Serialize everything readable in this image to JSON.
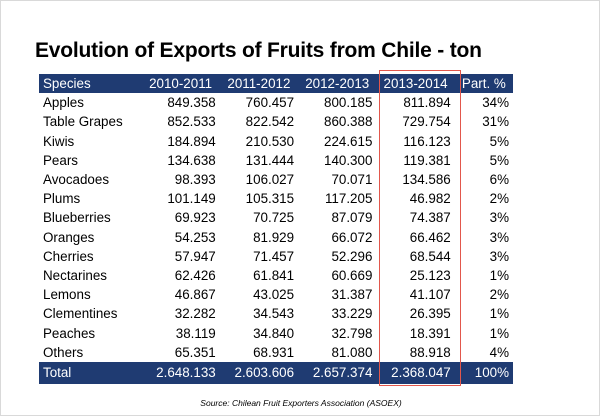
{
  "title": "Evolution of Exports of Fruits from Chile - ton",
  "table": {
    "headers": [
      "Species",
      "2010-2011",
      "2011-2012",
      "2012-2013",
      "2013-2014",
      "Part. %"
    ],
    "rows": [
      [
        "Apples",
        "849.358",
        "760.457",
        "800.185",
        "811.894",
        "34%"
      ],
      [
        "Table Grapes",
        "852.533",
        "822.542",
        "860.388",
        "729.754",
        "31%"
      ],
      [
        "Kiwis",
        "184.894",
        "210.530",
        "224.615",
        "116.123",
        "5%"
      ],
      [
        "Pears",
        "134.638",
        "131.444",
        "140.300",
        "119.381",
        "5%"
      ],
      [
        "Avocadoes",
        "98.393",
        "106.027",
        "70.071",
        "134.586",
        "6%"
      ],
      [
        "Plums",
        "101.149",
        "105.315",
        "117.205",
        "46.982",
        "2%"
      ],
      [
        "Blueberries",
        "69.923",
        "70.725",
        "87.079",
        "74.387",
        "3%"
      ],
      [
        "Oranges",
        "54.253",
        "81.929",
        "66.072",
        "66.462",
        "3%"
      ],
      [
        "Cherries",
        "57.947",
        "71.457",
        "52.296",
        "68.544",
        "3%"
      ],
      [
        "Nectarines",
        "62.426",
        "61.841",
        "60.669",
        "25.123",
        "1%"
      ],
      [
        "Lemons",
        "46.867",
        "43.025",
        "31.387",
        "41.107",
        "2%"
      ],
      [
        "Clementines",
        "32.282",
        "34.543",
        "33.229",
        "26.395",
        "1%"
      ],
      [
        "Peaches",
        "38.119",
        "34.840",
        "32.798",
        "18.391",
        "1%"
      ],
      [
        "Others",
        "65.351",
        "68.931",
        "81.080",
        "88.918",
        "4%"
      ]
    ],
    "total": [
      "Total",
      "2.648.133",
      "2.603.606",
      "2.657.374",
      "2.368.047",
      "100%"
    ]
  },
  "source": "Source: Chilean Fruit Exporters Association (ASOEX)",
  "colors": {
    "header_bg": "#1f3b72",
    "highlight_border": "#e2574c"
  }
}
